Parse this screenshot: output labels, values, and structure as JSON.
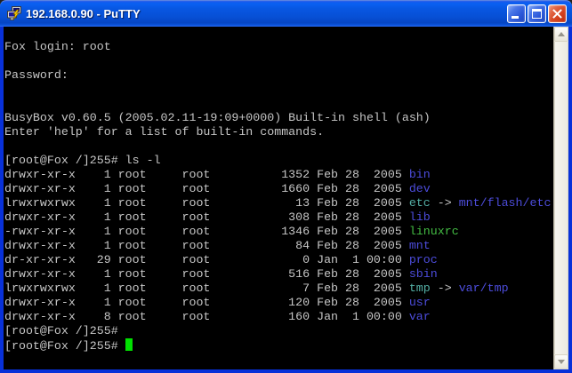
{
  "window": {
    "title": "192.168.0.90 - PuTTY",
    "controls": [
      "minimize",
      "maximize",
      "close"
    ]
  },
  "colors": {
    "terminal_background": "#000000",
    "terminal_foreground": "#C6C6C6",
    "directory_blue": "#4C4CDB",
    "symlink_cyan": "#53AEA4",
    "executable_green": "#43BC43",
    "cursor_green": "#00E000",
    "window_border_blue": "#0831D9",
    "scrollbar_face": "#EFEDE2"
  },
  "terminal": {
    "pre_lines": [
      "Fox login: root",
      "",
      "Password:",
      "",
      "",
      "BusyBox v0.60.5 (2005.02.11-19:09+0000) Built-in shell (ash)",
      "Enter 'help' for a list of built-in commands.",
      "",
      "[root@Fox /]255# ls -l"
    ],
    "ls_output": {
      "columns": [
        "permissions",
        "links",
        "owner",
        "group",
        "size",
        "date",
        "name"
      ],
      "arrow": "->",
      "rows": [
        {
          "permissions": "drwxr-xr-x",
          "links": "1",
          "owner": "root",
          "group": "root",
          "size": "1352",
          "date": "Feb 28  2005",
          "name": "bin",
          "type": "directory"
        },
        {
          "permissions": "drwxr-xr-x",
          "links": "1",
          "owner": "root",
          "group": "root",
          "size": "1660",
          "date": "Feb 28  2005",
          "name": "dev",
          "type": "directory"
        },
        {
          "permissions": "lrwxrwxrwx",
          "links": "1",
          "owner": "root",
          "group": "root",
          "size": "13",
          "date": "Feb 28  2005",
          "name": "etc",
          "type": "symlink",
          "target": "mnt/flash/etc"
        },
        {
          "permissions": "drwxr-xr-x",
          "links": "1",
          "owner": "root",
          "group": "root",
          "size": "308",
          "date": "Feb 28  2005",
          "name": "lib",
          "type": "directory"
        },
        {
          "permissions": "-rwxr-xr-x",
          "links": "1",
          "owner": "root",
          "group": "root",
          "size": "1346",
          "date": "Feb 28  2005",
          "name": "linuxrc",
          "type": "executable"
        },
        {
          "permissions": "drwxr-xr-x",
          "links": "1",
          "owner": "root",
          "group": "root",
          "size": "84",
          "date": "Feb 28  2005",
          "name": "mnt",
          "type": "directory"
        },
        {
          "permissions": "dr-xr-xr-x",
          "links": "29",
          "owner": "root",
          "group": "root",
          "size": "0",
          "date": "Jan  1 00:00",
          "name": "proc",
          "type": "directory"
        },
        {
          "permissions": "drwxr-xr-x",
          "links": "1",
          "owner": "root",
          "group": "root",
          "size": "516",
          "date": "Feb 28  2005",
          "name": "sbin",
          "type": "directory"
        },
        {
          "permissions": "lrwxrwxrwx",
          "links": "1",
          "owner": "root",
          "group": "root",
          "size": "7",
          "date": "Feb 28  2005",
          "name": "tmp",
          "type": "symlink",
          "target": "var/tmp"
        },
        {
          "permissions": "drwxr-xr-x",
          "links": "1",
          "owner": "root",
          "group": "root",
          "size": "120",
          "date": "Feb 28  2005",
          "name": "usr",
          "type": "directory"
        },
        {
          "permissions": "drwxr-xr-x",
          "links": "8",
          "owner": "root",
          "group": "root",
          "size": "160",
          "date": "Jan  1 00:00",
          "name": "var",
          "type": "directory"
        }
      ]
    },
    "post_lines": [
      "[root@Fox /]255#"
    ],
    "cursor_line_prompt": "[root@Fox /]255# "
  }
}
